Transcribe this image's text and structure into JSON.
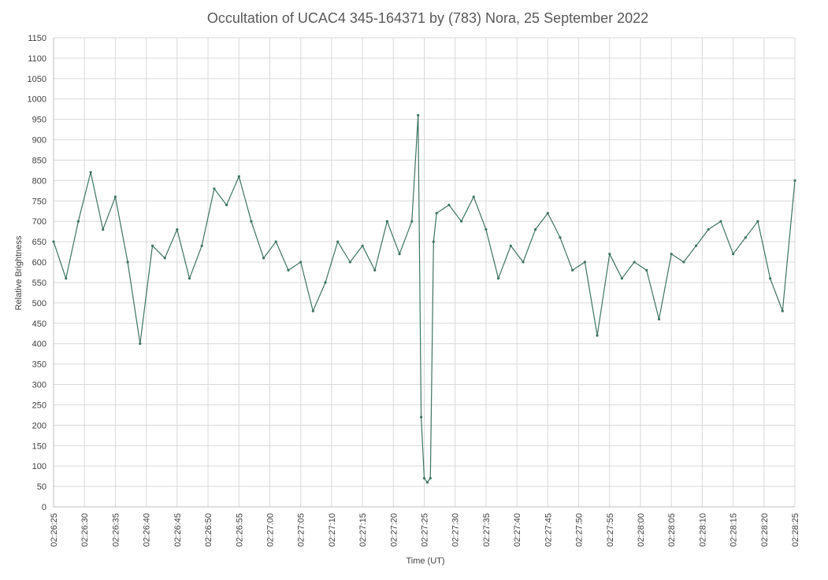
{
  "chart_data": {
    "type": "line",
    "title": "Occultation of UCAC4 345-164371 by (783) Nora, 25 September 2022",
    "xlabel": "Time (UT)",
    "ylabel": "Relative Brightness",
    "ylim": [
      0,
      1150
    ],
    "y_ticks": [
      "0",
      "50",
      "100",
      "150",
      "200",
      "250",
      "300",
      "350",
      "400",
      "450",
      "500",
      "550",
      "600",
      "650",
      "700",
      "750",
      "800",
      "850",
      "900",
      "950",
      "1000",
      "1050",
      "1100",
      "1150"
    ],
    "x_range": [
      "02:26:25",
      "02:28:25"
    ],
    "x_ticks": [
      "02:26:25",
      "02:26:30",
      "02:26:35",
      "02:26:40",
      "02:26:45",
      "02:26:50",
      "02:26:55",
      "02:27:00",
      "02:27:05",
      "02:27:10",
      "02:27:15",
      "02:27:20",
      "02:27:25",
      "02:27:30",
      "02:27:35",
      "02:27:40",
      "02:27:45",
      "02:27:50",
      "02:27:55",
      "02:28:00",
      "02:28:05",
      "02:28:10",
      "02:28:15",
      "02:28:20",
      "02:28:25"
    ],
    "grid": true,
    "legend": "none",
    "series_color": "#3e7461",
    "series": [
      {
        "x": [
          "02:26:25",
          "02:26:27",
          "02:26:29",
          "02:26:31",
          "02:26:33",
          "02:26:35",
          "02:26:37",
          "02:26:39",
          "02:26:41",
          "02:26:43",
          "02:26:45",
          "02:26:47",
          "02:26:49",
          "02:26:51",
          "02:26:53",
          "02:26:55",
          "02:26:57",
          "02:26:59",
          "02:27:01",
          "02:27:03",
          "02:27:05",
          "02:27:07",
          "02:27:09",
          "02:27:11",
          "02:27:13",
          "02:27:15",
          "02:27:17",
          "02:27:19",
          "02:27:21",
          "02:27:23",
          "02:27:24",
          "02:27:24.5",
          "02:27:25",
          "02:27:25.5",
          "02:27:26",
          "02:27:26.5",
          "02:27:27",
          "02:27:29",
          "02:27:31",
          "02:27:33",
          "02:27:35",
          "02:27:37",
          "02:27:39",
          "02:27:41",
          "02:27:43",
          "02:27:45",
          "02:27:47",
          "02:27:49",
          "02:27:51",
          "02:27:53",
          "02:27:55",
          "02:27:57",
          "02:27:59",
          "02:28:01",
          "02:28:03",
          "02:28:05",
          "02:28:07",
          "02:28:09",
          "02:28:11",
          "02:28:13",
          "02:28:15",
          "02:28:17",
          "02:28:19",
          "02:28:21",
          "02:28:23",
          "02:28:25"
        ],
        "values": [
          650,
          560,
          700,
          820,
          680,
          760,
          600,
          400,
          640,
          610,
          680,
          560,
          640,
          780,
          740,
          810,
          700,
          610,
          650,
          580,
          600,
          480,
          550,
          650,
          600,
          640,
          580,
          700,
          620,
          700,
          960,
          220,
          70,
          60,
          70,
          650,
          720,
          740,
          700,
          760,
          680,
          560,
          640,
          600,
          680,
          720,
          660,
          580,
          600,
          420,
          620,
          560,
          600,
          580,
          460,
          620,
          600,
          640,
          680,
          700,
          620,
          660,
          700,
          560,
          480,
          800
        ]
      }
    ]
  }
}
